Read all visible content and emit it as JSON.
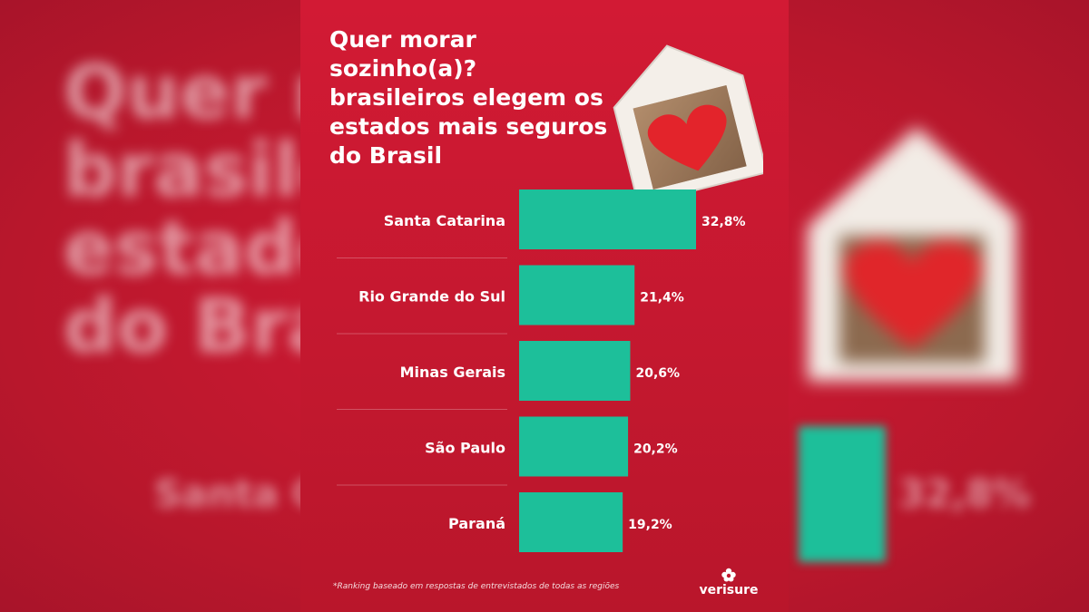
{
  "title_lines": [
    "Quer morar sozinho(a)?",
    "brasileiros elegem os",
    "estados mais seguros",
    "do Brasil"
  ],
  "footnote": "*Ranking baseado em respostas de entrevistados de todas as regiões",
  "logo_text": "verisure",
  "colors": {
    "background": "#c41a30",
    "bar": "#1dbf9a",
    "text": "#ffffff"
  },
  "chart_data": {
    "type": "bar",
    "orientation": "horizontal",
    "title": "Quer morar sozinho(a)? brasileiros elegem os estados mais seguros do Brasil",
    "categories": [
      "Santa Catarina",
      "Rio Grande do Sul",
      "Minas Gerais",
      "São Paulo",
      "Paraná"
    ],
    "values": [
      32.8,
      21.4,
      20.6,
      20.2,
      19.2
    ],
    "value_labels": [
      "32,8%",
      "21,4%",
      "20,6%",
      "20,2%",
      "19,2%"
    ],
    "unit": "%",
    "xlabel": "",
    "ylabel": "",
    "grid": false,
    "legend": "none"
  }
}
